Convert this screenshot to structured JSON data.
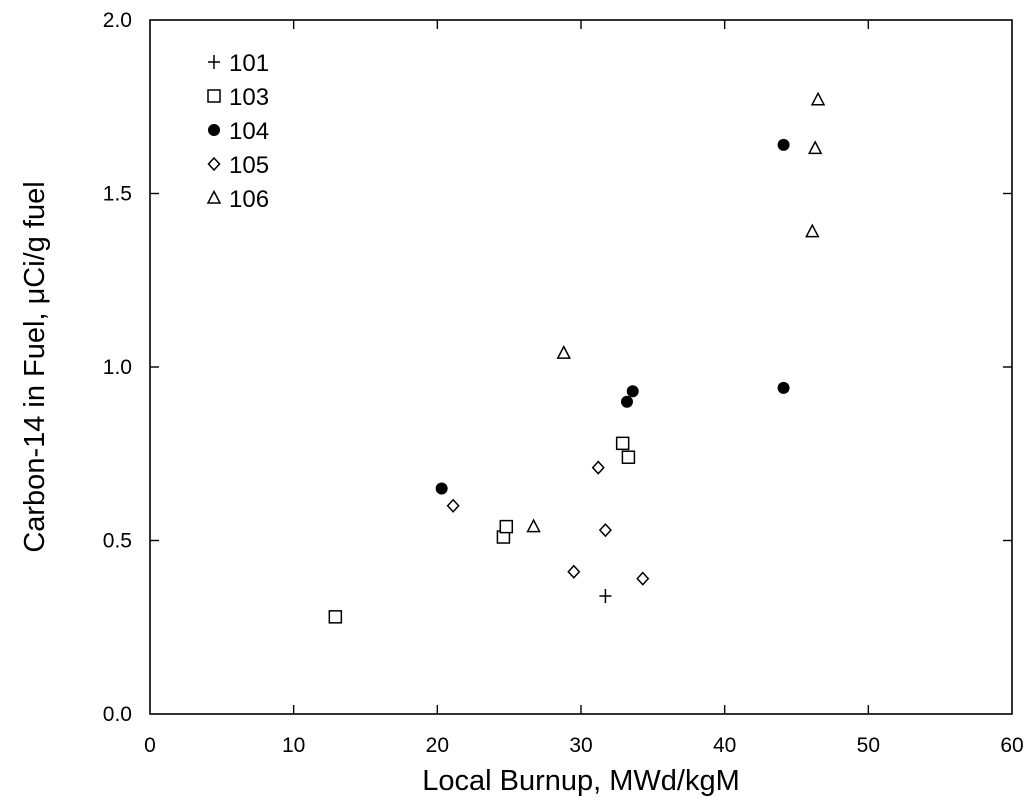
{
  "chart_data": {
    "type": "scatter",
    "xlabel": "Local Burnup, MWd/kgM",
    "ylabel": "Carbon-14 in Fuel, μCi/g fuel",
    "xlim": [
      0,
      60
    ],
    "ylim": [
      0.0,
      2.0
    ],
    "x_ticks": [
      "0",
      "10",
      "20",
      "30",
      "40",
      "50",
      "60"
    ],
    "y_ticks": [
      "0.0",
      "0.5",
      "1.0",
      "1.5",
      "2.0"
    ],
    "grid": false,
    "legend_position": "top-left",
    "series": [
      {
        "name": "101",
        "marker": "plus",
        "points": [
          [
            31.7,
            0.34
          ]
        ]
      },
      {
        "name": "103",
        "marker": "square-open",
        "points": [
          [
            12.9,
            0.28
          ],
          [
            24.6,
            0.51
          ],
          [
            24.8,
            0.54
          ],
          [
            32.9,
            0.78
          ],
          [
            33.3,
            0.74
          ]
        ]
      },
      {
        "name": "104",
        "marker": "circle-filled",
        "points": [
          [
            20.3,
            0.65
          ],
          [
            33.2,
            0.9
          ],
          [
            33.6,
            0.93
          ],
          [
            44.1,
            1.64
          ],
          [
            44.1,
            0.94
          ]
        ]
      },
      {
        "name": "105",
        "marker": "diamond-open",
        "points": [
          [
            21.1,
            0.6
          ],
          [
            29.5,
            0.41
          ],
          [
            31.2,
            0.71
          ],
          [
            31.7,
            0.53
          ],
          [
            34.3,
            0.39
          ]
        ]
      },
      {
        "name": "106",
        "marker": "triangle-open",
        "points": [
          [
            26.7,
            0.54
          ],
          [
            28.8,
            1.04
          ],
          [
            46.1,
            1.39
          ],
          [
            46.3,
            1.63
          ],
          [
            46.5,
            1.77
          ]
        ]
      }
    ]
  }
}
